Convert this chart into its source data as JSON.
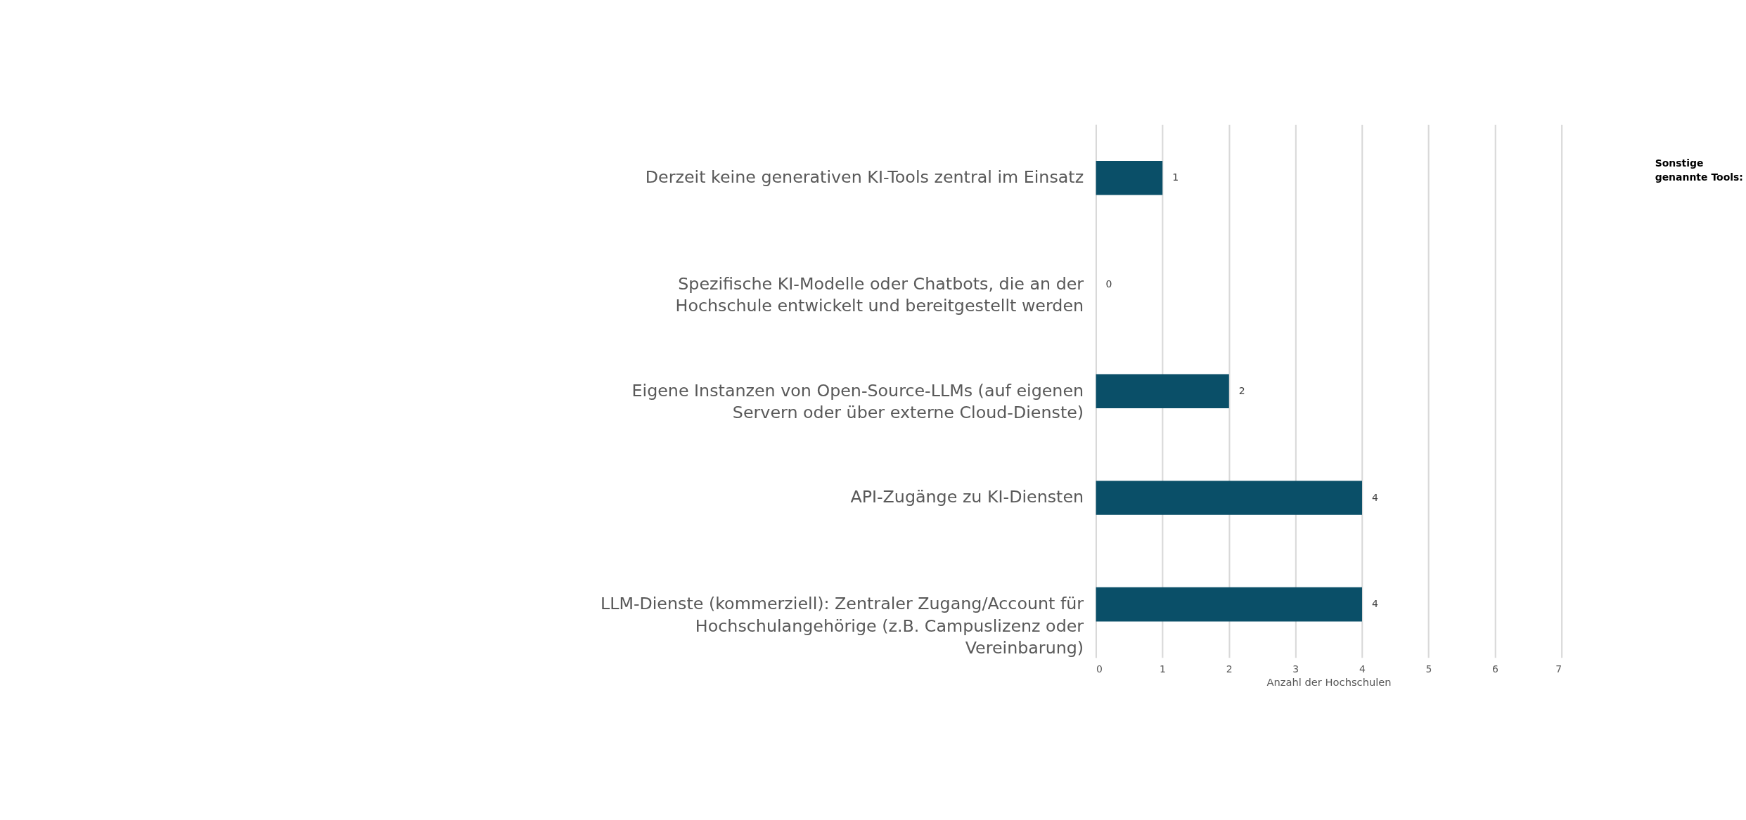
{
  "chart_data": {
    "type": "bar",
    "orientation": "horizontal",
    "xlabel": "Anzahl der Hochschulen",
    "categories": [
      "Derzeit keine generativen KI-Tools zentral im Einsatz",
      "Spezifische KI-Modelle oder Chatbots, die an der Hochschule entwickelt und bereitgestellt werden",
      "Eigene Instanzen von Open-Source-LLMs (auf eigenen Servern oder über externe Cloud-Dienste)",
      "API-Zugänge zu KI-Diensten",
      "LLM-Dienste (kommerziell): Zentraler Zugang/Account für Hochschulangehörige (z.B. Campuslizenz oder Vereinbarung)"
    ],
    "values": [
      1,
      0,
      2,
      4,
      4
    ],
    "color": "#0a4f68",
    "xlim": [
      0,
      7
    ],
    "xticks": [
      0,
      1,
      2,
      3,
      4,
      5,
      6,
      7
    ],
    "grid": "x",
    "data_labels": true,
    "annotations": [
      "Sonstige genannte Tools:"
    ]
  }
}
